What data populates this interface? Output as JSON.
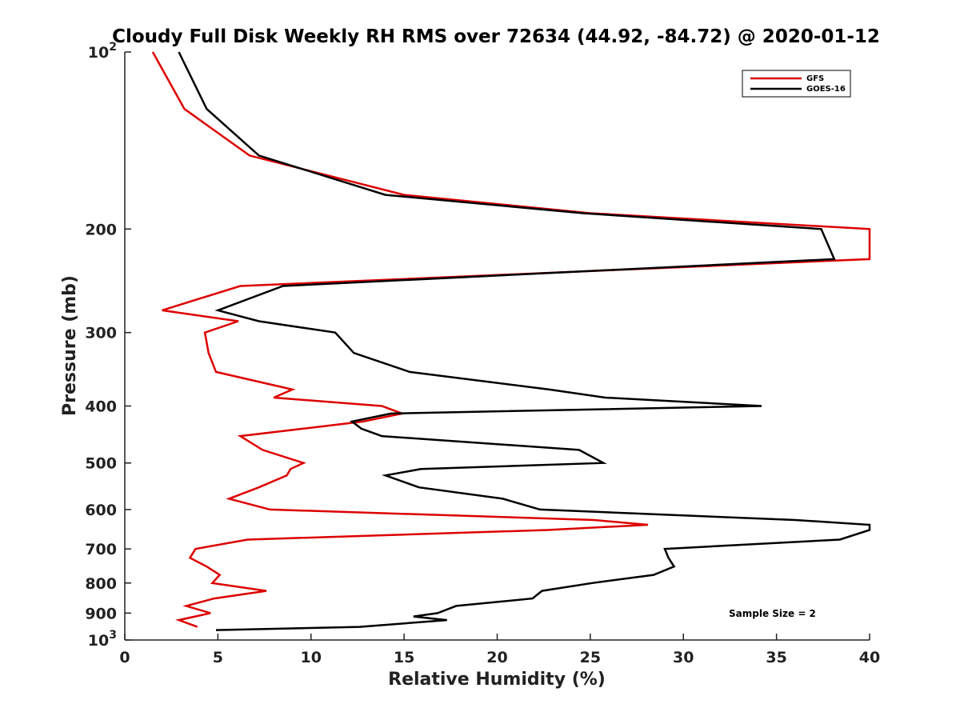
{
  "chart_data": {
    "type": "line",
    "title": "Cloudy Full Disk Weekly RH RMS over 72634 (44.92, -84.72) @ 2020-01-12",
    "xlabel": "Relative Humidity (%)",
    "ylabel": "Pressure (mb)",
    "xlim": [
      0,
      40
    ],
    "ylim": [
      100,
      1000
    ],
    "y_scale": "log",
    "y_reversed": true,
    "x_ticks": [
      "0",
      "5",
      "10",
      "15",
      "20",
      "25",
      "30",
      "35",
      "40"
    ],
    "y_ticks": [
      {
        "value": 100,
        "base": "10",
        "exp": "2"
      },
      {
        "value": 200,
        "label": "200"
      },
      {
        "value": 300,
        "label": "300"
      },
      {
        "value": 400,
        "label": "400"
      },
      {
        "value": 500,
        "label": "500"
      },
      {
        "value": 600,
        "label": "600"
      },
      {
        "value": 700,
        "label": "700"
      },
      {
        "value": 800,
        "label": "800"
      },
      {
        "value": 900,
        "label": "900"
      },
      {
        "value": 1000,
        "base": "10",
        "exp": "3"
      }
    ],
    "grid": false,
    "legend_position": "top-right",
    "annotation": "Sample Size = 2",
    "series": [
      {
        "name": "GFS",
        "color": "#dd0000",
        "points": [
          [
            1.5,
            100
          ],
          [
            3.2,
            125
          ],
          [
            6.7,
            150
          ],
          [
            15.0,
            175
          ],
          [
            25.0,
            188
          ],
          [
            40.0,
            200
          ],
          [
            40.0,
            225
          ],
          [
            6.2,
            250
          ],
          [
            2.0,
            275
          ],
          [
            6.1,
            287
          ],
          [
            4.3,
            300
          ],
          [
            4.5,
            325
          ],
          [
            4.9,
            350
          ],
          [
            9.0,
            375
          ],
          [
            8.0,
            387
          ],
          [
            13.8,
            400
          ],
          [
            14.9,
            412
          ],
          [
            12.8,
            425
          ],
          [
            9.6,
            437
          ],
          [
            6.2,
            450
          ],
          [
            7.4,
            475
          ],
          [
            9.6,
            500
          ],
          [
            8.9,
            512
          ],
          [
            8.7,
            525
          ],
          [
            7.2,
            550
          ],
          [
            5.6,
            575
          ],
          [
            7.8,
            600
          ],
          [
            25.2,
            625
          ],
          [
            28.1,
            637
          ],
          [
            22.7,
            650
          ],
          [
            6.6,
            675
          ],
          [
            3.8,
            700
          ],
          [
            3.5,
            725
          ],
          [
            4.4,
            750
          ],
          [
            5.1,
            775
          ],
          [
            4.7,
            800
          ],
          [
            7.6,
            825
          ],
          [
            4.8,
            850
          ],
          [
            3.3,
            875
          ],
          [
            4.6,
            900
          ],
          [
            2.9,
            925
          ],
          [
            3.9,
            950
          ]
        ]
      },
      {
        "name": "GOES-16",
        "color": "#000000",
        "points": [
          [
            2.9,
            100
          ],
          [
            4.4,
            125
          ],
          [
            7.2,
            150
          ],
          [
            14.0,
            175
          ],
          [
            24.6,
            188
          ],
          [
            37.4,
            200
          ],
          [
            38.1,
            225
          ],
          [
            8.5,
            250
          ],
          [
            5.0,
            275
          ],
          [
            7.2,
            287
          ],
          [
            11.3,
            300
          ],
          [
            12.3,
            325
          ],
          [
            15.3,
            350
          ],
          [
            22.8,
            375
          ],
          [
            25.8,
            387
          ],
          [
            34.2,
            400
          ],
          [
            14.3,
            412
          ],
          [
            12.2,
            425
          ],
          [
            12.7,
            437
          ],
          [
            13.8,
            450
          ],
          [
            24.4,
            475
          ],
          [
            25.7,
            500
          ],
          [
            15.9,
            512
          ],
          [
            14.0,
            525
          ],
          [
            15.8,
            550
          ],
          [
            20.3,
            575
          ],
          [
            22.3,
            600
          ],
          [
            36.0,
            625
          ],
          [
            40.0,
            637
          ],
          [
            40.0,
            650
          ],
          [
            38.4,
            675
          ],
          [
            29.0,
            700
          ],
          [
            29.2,
            725
          ],
          [
            29.5,
            750
          ],
          [
            28.4,
            775
          ],
          [
            25.1,
            800
          ],
          [
            22.4,
            825
          ],
          [
            21.9,
            850
          ],
          [
            17.8,
            875
          ],
          [
            16.8,
            900
          ],
          [
            15.5,
            912
          ],
          [
            17.3,
            925
          ],
          [
            12.6,
            950
          ],
          [
            4.9,
            962
          ]
        ]
      }
    ]
  }
}
